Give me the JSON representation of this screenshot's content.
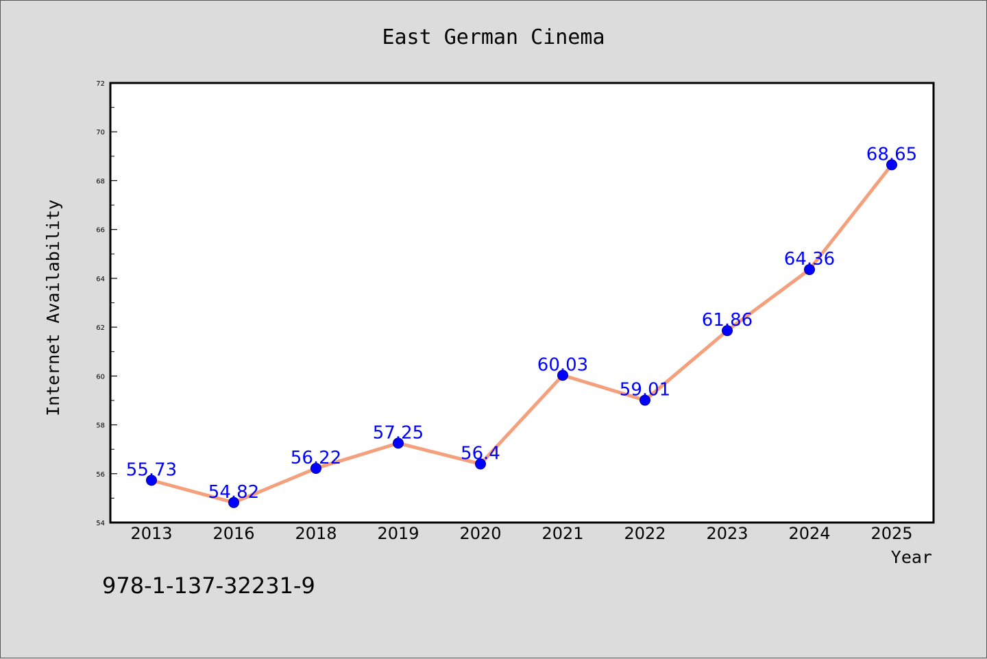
{
  "chart_data": {
    "type": "line",
    "title": "East German Cinema",
    "xlabel": "Year",
    "ylabel": "Internet Availability",
    "categories": [
      "2013",
      "2016",
      "2018",
      "2019",
      "2020",
      "2021",
      "2022",
      "2023",
      "2024",
      "2025"
    ],
    "values": [
      55.73,
      54.82,
      56.22,
      57.25,
      56.4,
      60.03,
      59.01,
      61.86,
      64.36,
      68.65
    ],
    "data_labels": [
      "55.73",
      "54.82",
      "56.22",
      "57.25",
      "56.4",
      "60.03",
      "59.01",
      "61.86",
      "64.36",
      "68.65"
    ],
    "ylim": [
      54,
      72
    ],
    "yticks": [
      54,
      56,
      58,
      60,
      62,
      64,
      66,
      68,
      70,
      72
    ],
    "grid": false,
    "line_color": "#f4a07c",
    "marker_color": "#0000ff",
    "label_color": "#0000ff",
    "background_color": "#dcdcdc",
    "plot_background_color": "#ffffff"
  },
  "footnote": "978-1-137-32231-9"
}
